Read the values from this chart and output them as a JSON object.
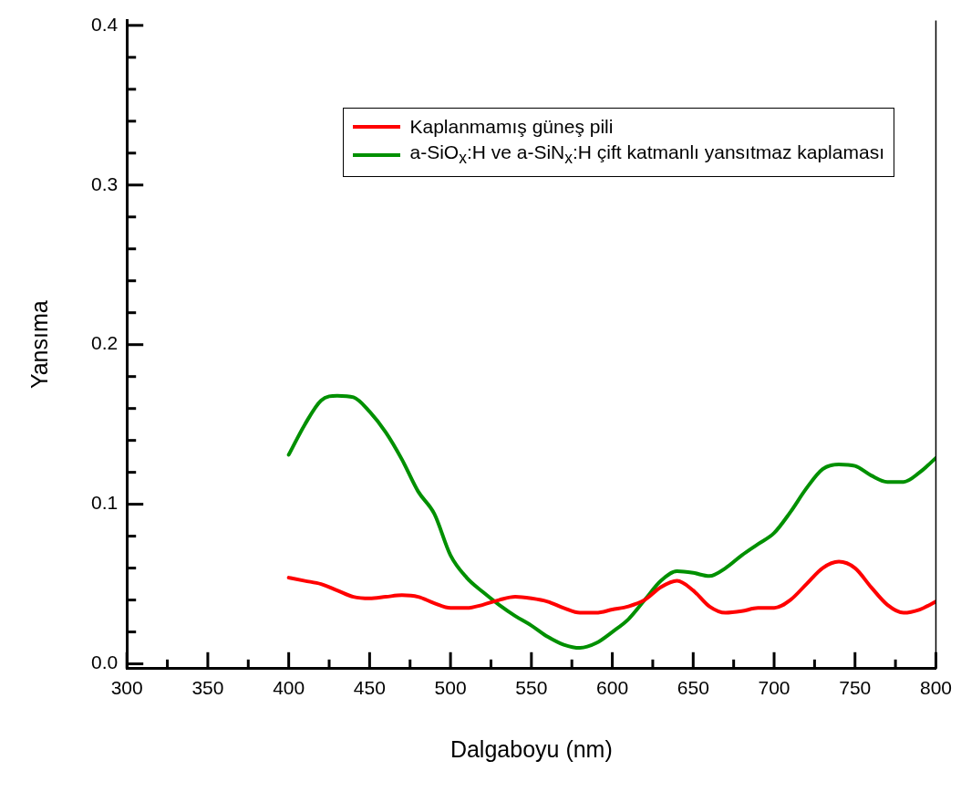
{
  "chart_data": {
    "type": "line",
    "xlabel": "Dalgaboyu (nm)",
    "ylabel": "Yansıma",
    "x": [
      400,
      410,
      420,
      430,
      440,
      450,
      460,
      470,
      480,
      490,
      500,
      510,
      520,
      530,
      540,
      550,
      560,
      570,
      580,
      590,
      600,
      610,
      620,
      630,
      640,
      650,
      660,
      670,
      680,
      690,
      700,
      710,
      720,
      730,
      740,
      750,
      760,
      770,
      780,
      790,
      800
    ],
    "series": [
      {
        "name": "Kaplanmamış güneş pili",
        "color": "#ff0000",
        "values": [
          0.054,
          0.052,
          0.05,
          0.046,
          0.042,
          0.041,
          0.042,
          0.043,
          0.042,
          0.038,
          0.035,
          0.035,
          0.037,
          0.04,
          0.042,
          0.041,
          0.039,
          0.035,
          0.032,
          0.032,
          0.034,
          0.036,
          0.04,
          0.048,
          0.052,
          0.046,
          0.036,
          0.032,
          0.033,
          0.035,
          0.035,
          0.04,
          0.05,
          0.06,
          0.064,
          0.06,
          0.048,
          0.037,
          0.032,
          0.034,
          0.039
        ]
      },
      {
        "name": "a-SiO$_{x}$:H ve a-SiN$_{x}$:H çift katmanlı yansıtmaz kaplaması",
        "color": "#009000",
        "values": [
          0.131,
          0.15,
          0.165,
          0.168,
          0.167,
          0.158,
          0.145,
          0.128,
          0.108,
          0.094,
          0.068,
          0.054,
          0.045,
          0.037,
          0.03,
          0.024,
          0.017,
          0.012,
          0.01,
          0.013,
          0.02,
          0.028,
          0.04,
          0.052,
          0.058,
          0.057,
          0.055,
          0.06,
          0.068,
          0.075,
          0.082,
          0.095,
          0.11,
          0.122,
          0.125,
          0.124,
          0.118,
          0.114,
          0.114,
          0.12,
          0.129
        ]
      }
    ],
    "xlim": [
      300,
      800
    ],
    "xticks": [
      300,
      {
        "value": 325,
        "label": null
      },
      350,
      {
        "value": 375,
        "label": null
      },
      400,
      {
        "value": 425,
        "label": null
      },
      450,
      {
        "value": 475,
        "label": null
      },
      500,
      {
        "value": 525,
        "label": null
      },
      550,
      {
        "value": 575,
        "label": null
      },
      600,
      {
        "value": 625,
        "label": null
      },
      650,
      {
        "value": 675,
        "label": null
      },
      700,
      {
        "value": 725,
        "label": null
      },
      750,
      {
        "value": 775,
        "label": null
      },
      800
    ],
    "ylim": [
      -0.003,
      0.403
    ],
    "yticks": [
      {
        "value": 0,
        "label": "0.0"
      },
      {
        "value": 0.02,
        "label": null
      },
      {
        "value": 0.04,
        "label": null
      },
      {
        "value": 0.06,
        "label": null
      },
      {
        "value": 0.08,
        "label": null
      },
      {
        "value": 0.1,
        "label": "0.1"
      },
      {
        "value": 0.12,
        "label": null
      },
      {
        "value": 0.14,
        "label": null
      },
      {
        "value": 0.16,
        "label": null
      },
      {
        "value": 0.18,
        "label": null
      },
      {
        "value": 0.2,
        "label": "0.2"
      },
      {
        "value": 0.22,
        "label": null
      },
      {
        "value": 0.24,
        "label": null
      },
      {
        "value": 0.26,
        "label": null
      },
      {
        "value": 0.28,
        "label": null
      },
      {
        "value": 0.3,
        "label": "0.3"
      },
      {
        "value": 0.32,
        "label": null
      },
      {
        "value": 0.34,
        "label": null
      },
      {
        "value": 0.36,
        "label": null
      },
      {
        "value": 0.38,
        "label": null
      },
      {
        "value": 0.4,
        "label": "0.4"
      }
    ],
    "grid": false,
    "legend": "top right",
    "marker": "none",
    "line_style": "solid"
  }
}
